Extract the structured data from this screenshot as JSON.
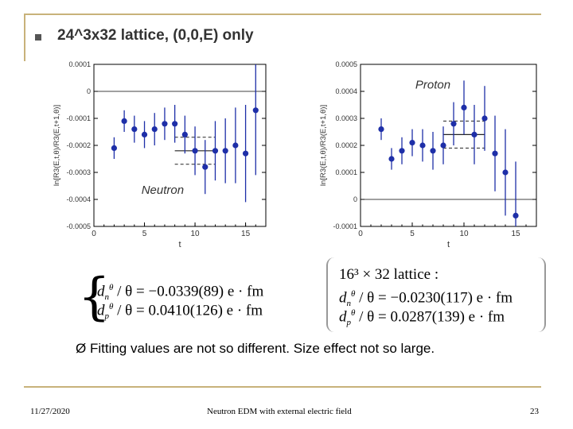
{
  "slide": {
    "title": "24^3x32 lattice, (0,0,E) only",
    "conclusion": "Fitting values are not so different. Size effect not so large.",
    "conclusion_marker": "Ø",
    "formula_left": {
      "line1": "d_n^θ / θ = −0.0339(89) e·fm",
      "line2": "d_p^θ / θ = 0.0410(126) e·fm",
      "line1_rhs": "/ θ = −0.0339(89) e · fm",
      "line2_rhs": "/ θ = 0.0410(126) e · fm"
    },
    "formula_right": {
      "header": "16³ × 32  lattice :",
      "line1_rhs": "/ θ = −0.0230(117) e · fm",
      "line2_rhs": "/ θ = 0.0287(139) e · fm"
    },
    "symbols": {
      "d": "d",
      "theta": "θ",
      "n": "n",
      "p": "p"
    },
    "footer": {
      "date": "11/27/2020",
      "center": "Neutron EDM with external electric field",
      "page": "23"
    },
    "colors": {
      "marker": "#1e2fa8",
      "fit": "#222222",
      "frame": "#c8b27a"
    }
  },
  "chart_data": [
    {
      "type": "scatter",
      "title": "Neutron",
      "xlabel": "t",
      "ylabel": "ln[R3(E,t,θ)/R3(E,t+1,θ)]",
      "xlim": [
        0,
        17
      ],
      "ylim": [
        -0.0005,
        0.0001
      ],
      "xticks": [
        0,
        5,
        10,
        15
      ],
      "yticks": [
        -0.0005,
        -0.0004,
        -0.0003,
        -0.0002,
        -0.0001,
        0,
        0.0001
      ],
      "ytick_labels": [
        "-0.0005",
        "-0.0004",
        "-0.0003",
        "-0.0002",
        "-0.0001",
        "0",
        "0.0001"
      ],
      "points": [
        {
          "x": 2,
          "y": -0.00021,
          "err": 4e-05
        },
        {
          "x": 3,
          "y": -0.00011,
          "err": 4e-05
        },
        {
          "x": 4,
          "y": -0.00014,
          "err": 5e-05
        },
        {
          "x": 5,
          "y": -0.00016,
          "err": 5e-05
        },
        {
          "x": 6,
          "y": -0.00014,
          "err": 6e-05
        },
        {
          "x": 7,
          "y": -0.00012,
          "err": 6e-05
        },
        {
          "x": 8,
          "y": -0.00012,
          "err": 7e-05
        },
        {
          "x": 9,
          "y": -0.00016,
          "err": 7e-05
        },
        {
          "x": 10,
          "y": -0.00022,
          "err": 9e-05
        },
        {
          "x": 11,
          "y": -0.00028,
          "err": 0.0001
        },
        {
          "x": 12,
          "y": -0.00022,
          "err": 0.00011
        },
        {
          "x": 13,
          "y": -0.00022,
          "err": 0.00012
        },
        {
          "x": 14,
          "y": -0.0002,
          "err": 0.00014
        },
        {
          "x": 15,
          "y": -0.00023,
          "err": 0.00018
        },
        {
          "x": 16,
          "y": -7e-05,
          "err": 0.00024
        }
      ],
      "fit": {
        "x": [
          8,
          12
        ],
        "y": -0.00022,
        "band": [
          -0.00017,
          -0.00027
        ]
      },
      "zero_line": 0
    },
    {
      "type": "scatter",
      "title": "Proton",
      "xlabel": "t",
      "ylabel": "ln[R3(E,t,θ)/R3(E,t+1,θ)]",
      "xlim": [
        0,
        17
      ],
      "ylim": [
        -0.0001,
        0.0005
      ],
      "xticks": [
        0,
        5,
        10,
        15
      ],
      "yticks": [
        -0.0001,
        0,
        0.0001,
        0.0002,
        0.0003,
        0.0004,
        0.0005
      ],
      "ytick_labels": [
        "-0.0001",
        "0",
        "0.0001",
        "0.0002",
        "0.0003",
        "0.0004",
        "0.0005"
      ],
      "points": [
        {
          "x": 2,
          "y": 0.00026,
          "err": 4e-05
        },
        {
          "x": 3,
          "y": 0.00015,
          "err": 4e-05
        },
        {
          "x": 4,
          "y": 0.00018,
          "err": 5e-05
        },
        {
          "x": 5,
          "y": 0.00021,
          "err": 5e-05
        },
        {
          "x": 6,
          "y": 0.0002,
          "err": 6e-05
        },
        {
          "x": 7,
          "y": 0.00018,
          "err": 7e-05
        },
        {
          "x": 8,
          "y": 0.0002,
          "err": 7e-05
        },
        {
          "x": 9,
          "y": 0.00028,
          "err": 8e-05
        },
        {
          "x": 10,
          "y": 0.00034,
          "err": 0.0001
        },
        {
          "x": 11,
          "y": 0.00024,
          "err": 0.00011
        },
        {
          "x": 12,
          "y": 0.0003,
          "err": 0.00012
        },
        {
          "x": 13,
          "y": 0.00017,
          "err": 0.00014
        },
        {
          "x": 14,
          "y": 0.0001,
          "err": 0.00016
        },
        {
          "x": 15,
          "y": -6e-05,
          "err": 0.0002
        }
      ],
      "fit": {
        "x": [
          8,
          12
        ],
        "y": 0.00024,
        "band": [
          0.00019,
          0.00029
        ]
      },
      "zero_line": 0
    }
  ]
}
